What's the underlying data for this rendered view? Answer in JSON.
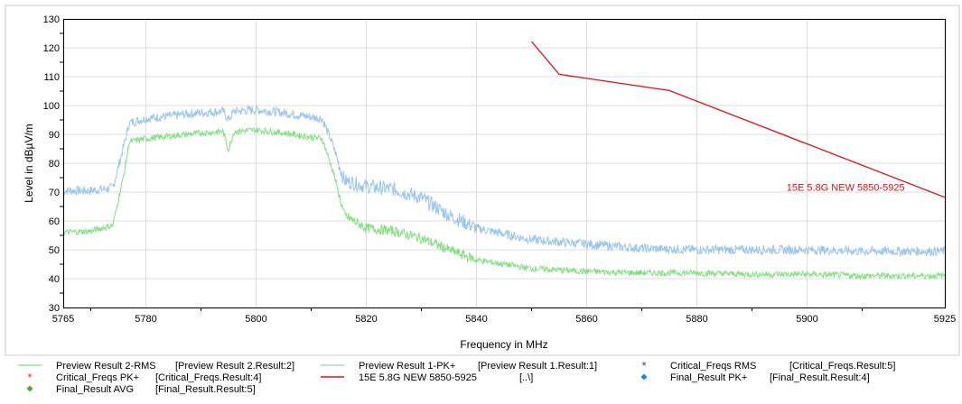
{
  "chart_data": {
    "type": "line",
    "xlabel": "Frequency in MHz",
    "ylabel": "Level in dBµV/m",
    "xlim": [
      5765,
      5925
    ],
    "ylim": [
      30,
      130
    ],
    "x_ticks": [
      "5765",
      "5780",
      "5800",
      "5820",
      "5840",
      "5860",
      "5880",
      "5900",
      "5925"
    ],
    "y_ticks": [
      "30",
      "40",
      "50",
      "60",
      "70",
      "80",
      "90",
      "100",
      "110",
      "120",
      "130"
    ],
    "grid": true,
    "legend_position": "bottom",
    "colors": {
      "rms": "#80e080",
      "pk": "#99c4ee",
      "limit": "#e01010",
      "crit_rms": "#2040c0",
      "crit_pk": "#e03030",
      "final_avg": "#40b040",
      "final_pk": "#3080d0"
    },
    "series": [
      {
        "name": "Preview Result 1-PK+",
        "x": [
          5765,
          5770,
          5774,
          5776,
          5777,
          5780,
          5785,
          5790,
          5794,
          5795,
          5796,
          5800,
          5805,
          5810,
          5812,
          5814,
          5816,
          5820,
          5825,
          5830,
          5835,
          5840,
          5850,
          5860,
          5870,
          5880,
          5890,
          5900,
          5910,
          5925
        ],
        "y": [
          70.5,
          70.5,
          71.5,
          86,
          94,
          95.5,
          96.5,
          97.5,
          98,
          95,
          98,
          98.5,
          97.5,
          96,
          95.5,
          86,
          74,
          72,
          71,
          68,
          62,
          57.5,
          53.5,
          52,
          50.5,
          50,
          50,
          50,
          49.5,
          49.5
        ]
      },
      {
        "name": "Preview Result 2-RMS",
        "x": [
          5765,
          5770,
          5774,
          5776,
          5777,
          5780,
          5785,
          5790,
          5794,
          5795,
          5796,
          5800,
          5805,
          5810,
          5812,
          5814,
          5816,
          5820,
          5825,
          5830,
          5835,
          5840,
          5850,
          5860,
          5870,
          5880,
          5890,
          5900,
          5910,
          5925
        ],
        "y": [
          56,
          56.5,
          58.5,
          76,
          87.5,
          88.5,
          89.5,
          90.5,
          91,
          84.5,
          91,
          91.5,
          90.5,
          89,
          88.5,
          77,
          62,
          57.5,
          56.5,
          54,
          50,
          46.5,
          43.5,
          42.5,
          42,
          42,
          41.5,
          41.5,
          41,
          41
        ]
      },
      {
        "name": "15E 5.8G NEW 5850-5925",
        "x": [
          5850,
          5855,
          5875,
          5925
        ],
        "y": [
          122.2,
          110.8,
          105.2,
          68.2
        ],
        "label": "15E 5.8G NEW 5850-5925"
      }
    ],
    "legend": [
      {
        "label": "Preview Result 2-RMS",
        "ref": "[Preview Result 2.Result:2]"
      },
      {
        "label": "Preview Result 1-PK+",
        "ref": "[Preview Result 1.Result:1]"
      },
      {
        "label": "Critical_Freqs RMS",
        "ref": "[Critical_Freqs.Result:5]"
      },
      {
        "label": "Critical_Freqs PK+",
        "ref": "[Critical_Freqs.Result:4]"
      },
      {
        "label": "15E 5.8G NEW 5850-5925",
        "ref": "[..\\]"
      },
      {
        "label": "Final_Result PK+",
        "ref": "[Final_Result.Result:4]"
      },
      {
        "label": "Final_Result AVG",
        "ref": "[Final_Result.Result:5]"
      }
    ]
  }
}
